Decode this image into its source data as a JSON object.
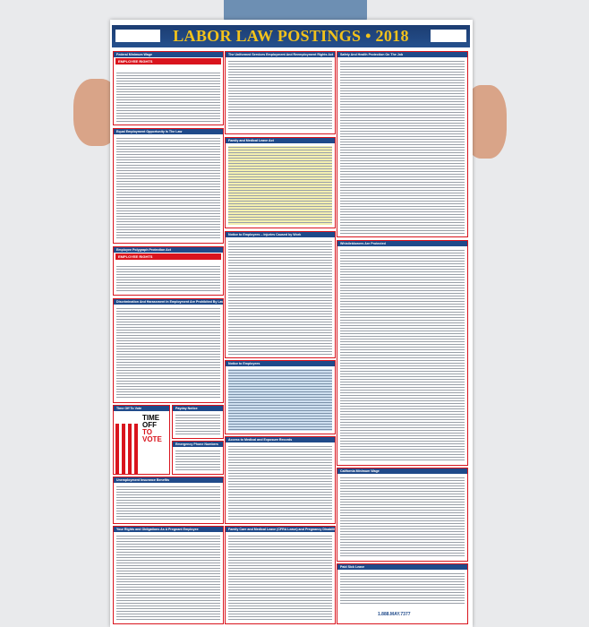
{
  "poster": {
    "title": "LABOR LAW POSTINGS • 2018",
    "sections": {
      "federal_min_wage": "Federal Minimum Wage",
      "federal_min_wage_banner": "EMPLOYEE RIGHTS",
      "userra": "The Uniformed Services Employment And Reemployment Rights Act",
      "safety": "Safety And Health Protection On The Job",
      "eeo": "Equal Employment Opportunity Is The Law",
      "fmla": "Family and Medical Leave Act",
      "injuries": "Notice to Employees – Injuries Caused by Work",
      "polygraph": "Employee Polygraph Protection Act",
      "polygraph_banner": "EMPLOYEE RIGHTS",
      "discrimination": "Discrimination And Harassment In Employment Are Prohibited By Law",
      "whistleblowers": "Whistleblowers Are Protected",
      "notice": "Notice to Employees",
      "vote": "Time Off To Vote",
      "vote_heading_1": "TIME OFF",
      "vote_heading_2": "TO VOTE",
      "payday": "Payday Notice",
      "emergency": "Emergency Phone Numbers",
      "medical_records": "Access to Medical and Exposure Records",
      "unemployment": "Unemployment Insurance Benefits",
      "ca_min_wage": "California Minimum Wage",
      "pregnant": "Your Rights and Obligations As A Pregnant Employee",
      "cfra": "Family Care and Medical Leave (CFRA Leave) and Pregnancy Disability Leave",
      "paid_sick": "Paid Sick Leave"
    },
    "footer_phone": "1.888.MAY.7377"
  },
  "colors": {
    "header": "#1f4a8a",
    "title": "#f2c21b",
    "border": "#d9141d"
  }
}
